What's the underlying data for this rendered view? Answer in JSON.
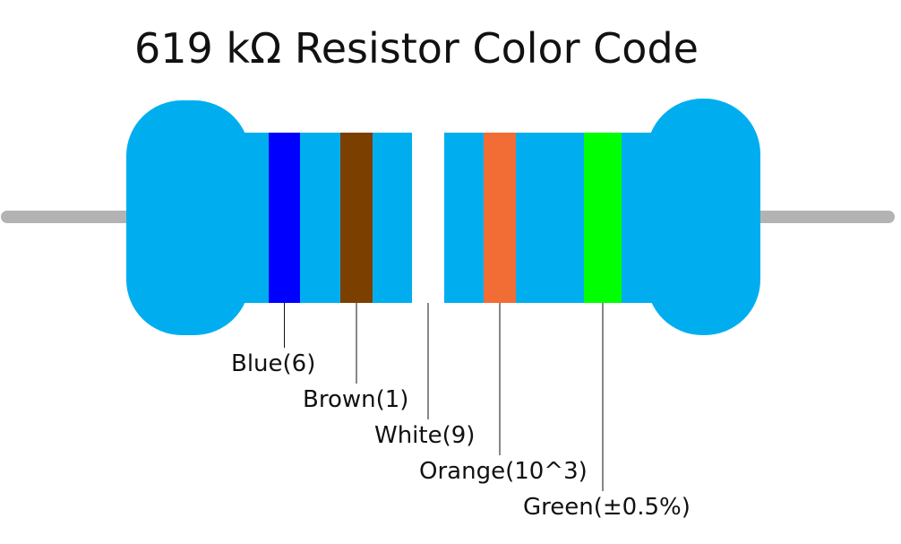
{
  "title": "619 kΩ Resistor Color Code",
  "colors": {
    "body": "#00aeef",
    "lead": "#b3b3b3",
    "background": "#ffffff",
    "label_text": "#111111",
    "leader_line": "#111111"
  },
  "bands": [
    {
      "name": "Blue",
      "value": "6",
      "label": "Blue(6)",
      "color": "#0000ff"
    },
    {
      "name": "Brown",
      "value": "1",
      "label": "Brown(1)",
      "color": "#7b4000"
    },
    {
      "name": "White",
      "value": "9",
      "label": "White(9)",
      "color": "#ffffff"
    },
    {
      "name": "Orange",
      "value": "10^3",
      "label": "Orange(10^3)",
      "color": "#f26c36"
    },
    {
      "name": "Green",
      "value": "±0.5%",
      "label": "Green(±0.5%)",
      "color": "#00ff00"
    }
  ]
}
